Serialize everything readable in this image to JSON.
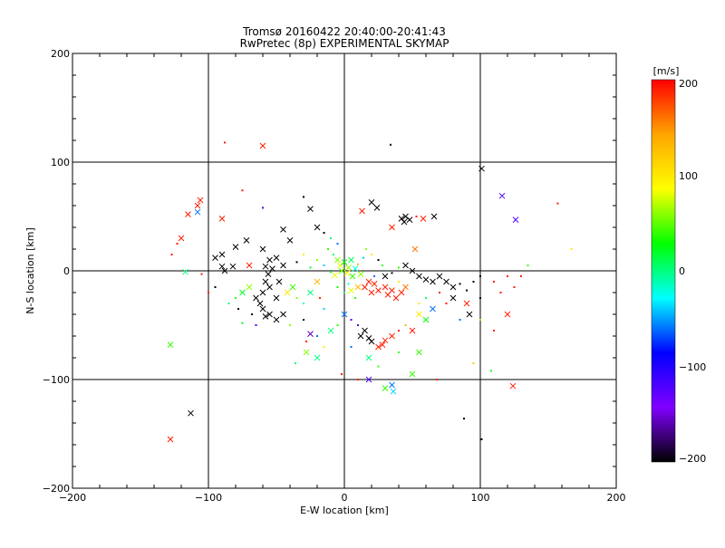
{
  "chart_data": {
    "type": "scatter",
    "title": "Tromsø 20160422 20:40:00-20:41:43",
    "subtitle": "RwPretec (8p) EXPERIMENTAL SKYMAP",
    "xlabel": "E-W location [km]",
    "ylabel": "N-S location [km]",
    "xlim": [
      -200,
      200
    ],
    "ylim": [
      -200,
      200
    ],
    "x_ticks": [
      -200,
      -100,
      0,
      100,
      200
    ],
    "y_ticks": [
      -200,
      -100,
      0,
      100,
      200
    ],
    "x_tick_labels": [
      "−200",
      "−100",
      "0",
      "100",
      "200"
    ],
    "y_tick_labels": [
      "−200",
      "−100",
      "0",
      "100",
      "200"
    ],
    "grid_lines": [
      -100,
      0,
      100
    ],
    "colorbar": {
      "label": "[m/s]",
      "range": [
        -200,
        200
      ],
      "ticks": [
        200,
        100,
        0,
        -100,
        -200
      ],
      "tick_labels": [
        "200",
        "100",
        "0",
        "−100",
        "−200"
      ],
      "colors": [
        "#ff0000",
        "#ffa500",
        "#ffff00",
        "#00ff00",
        "#00ffff",
        "#0000ff",
        "#8000ff",
        "#000000"
      ]
    },
    "points": [
      {
        "x": -88,
        "y": 118,
        "v": 190,
        "m": "."
      },
      {
        "x": -60,
        "y": 115,
        "v": 190,
        "m": "x"
      },
      {
        "x": 34,
        "y": 116,
        "v": -200,
        "m": "."
      },
      {
        "x": 101,
        "y": 94,
        "v": -200,
        "m": "x"
      },
      {
        "x": 116,
        "y": 69,
        "v": -120,
        "m": "x"
      },
      {
        "x": 126,
        "y": 47,
        "v": -120,
        "m": "x"
      },
      {
        "x": 157,
        "y": 62,
        "v": 190,
        "m": "."
      },
      {
        "x": 167,
        "y": 20,
        "v": 100,
        "m": "."
      },
      {
        "x": -106,
        "y": 65,
        "v": 190,
        "m": "x"
      },
      {
        "x": -108,
        "y": 60,
        "v": 190,
        "m": "x"
      },
      {
        "x": -115,
        "y": 52,
        "v": 190,
        "m": "x"
      },
      {
        "x": -108,
        "y": 54,
        "v": -60,
        "m": "x"
      },
      {
        "x": -120,
        "y": 30,
        "v": 190,
        "m": "x"
      },
      {
        "x": -123,
        "y": 25,
        "v": 190,
        "m": "."
      },
      {
        "x": -90,
        "y": 48,
        "v": 190,
        "m": "x"
      },
      {
        "x": -75,
        "y": 74,
        "v": 190,
        "m": "."
      },
      {
        "x": -60,
        "y": 58,
        "v": -120,
        "m": "."
      },
      {
        "x": -30,
        "y": 68,
        "v": -200,
        "m": "."
      },
      {
        "x": -25,
        "y": 57,
        "v": -200,
        "m": "x"
      },
      {
        "x": 20,
        "y": 63,
        "v": -200,
        "m": "x"
      },
      {
        "x": 24,
        "y": 58,
        "v": -200,
        "m": "x"
      },
      {
        "x": 13,
        "y": 55,
        "v": 190,
        "m": "x"
      },
      {
        "x": 42,
        "y": 48,
        "v": -200,
        "m": "x"
      },
      {
        "x": 45,
        "y": 50,
        "v": -200,
        "m": "x"
      },
      {
        "x": 44,
        "y": 45,
        "v": -200,
        "m": "x"
      },
      {
        "x": 48,
        "y": 47,
        "v": -200,
        "m": "x"
      },
      {
        "x": 58,
        "y": 48,
        "v": 190,
        "m": "x"
      },
      {
        "x": 53,
        "y": 50,
        "v": 190,
        "m": "."
      },
      {
        "x": 66,
        "y": 50,
        "v": -200,
        "m": "x"
      },
      {
        "x": 35,
        "y": 40,
        "v": 190,
        "m": "x"
      },
      {
        "x": 52,
        "y": 20,
        "v": 160,
        "m": "x"
      },
      {
        "x": -127,
        "y": 15,
        "v": 190,
        "m": "."
      },
      {
        "x": -105,
        "y": -3,
        "v": 190,
        "m": "."
      },
      {
        "x": -117,
        "y": -1,
        "v": 0,
        "m": "x"
      },
      {
        "x": -90,
        "y": 15,
        "v": -200,
        "m": "x"
      },
      {
        "x": -95,
        "y": 12,
        "v": -200,
        "m": "x"
      },
      {
        "x": -90,
        "y": 4,
        "v": -200,
        "m": "x"
      },
      {
        "x": -88,
        "y": 0,
        "v": -200,
        "m": "x"
      },
      {
        "x": -82,
        "y": 4,
        "v": -200,
        "m": "x"
      },
      {
        "x": -80,
        "y": 22,
        "v": -200,
        "m": "x"
      },
      {
        "x": -72,
        "y": 28,
        "v": -200,
        "m": "x"
      },
      {
        "x": -70,
        "y": 5,
        "v": 190,
        "m": "x"
      },
      {
        "x": -60,
        "y": 20,
        "v": -200,
        "m": "x"
      },
      {
        "x": -55,
        "y": 10,
        "v": -200,
        "m": "x"
      },
      {
        "x": -58,
        "y": 4,
        "v": -200,
        "m": "x"
      },
      {
        "x": -53,
        "y": 2,
        "v": -200,
        "m": "x"
      },
      {
        "x": -56,
        "y": -3,
        "v": -200,
        "m": "x"
      },
      {
        "x": -50,
        "y": 12,
        "v": -200,
        "m": "x"
      },
      {
        "x": -45,
        "y": 38,
        "v": -200,
        "m": "x"
      },
      {
        "x": -40,
        "y": 28,
        "v": -200,
        "m": "x"
      },
      {
        "x": -45,
        "y": 5,
        "v": -200,
        "m": "x"
      },
      {
        "x": -35,
        "y": 8,
        "v": -200,
        "m": "."
      },
      {
        "x": -30,
        "y": 15,
        "v": 100,
        "m": "."
      },
      {
        "x": -20,
        "y": 40,
        "v": -200,
        "m": "x"
      },
      {
        "x": -15,
        "y": 35,
        "v": -200,
        "m": "."
      },
      {
        "x": -10,
        "y": 30,
        "v": 0,
        "m": "."
      },
      {
        "x": -5,
        "y": 25,
        "v": -60,
        "m": "."
      },
      {
        "x": -12,
        "y": 20,
        "v": 40,
        "m": "."
      },
      {
        "x": -8,
        "y": 15,
        "v": 0,
        "m": "."
      },
      {
        "x": -20,
        "y": 10,
        "v": 60,
        "m": "."
      },
      {
        "x": -15,
        "y": 5,
        "v": -40,
        "m": "."
      },
      {
        "x": -25,
        "y": 3,
        "v": 20,
        "m": "."
      },
      {
        "x": -5,
        "y": 10,
        "v": 60,
        "m": "x"
      },
      {
        "x": -3,
        "y": 5,
        "v": 80,
        "m": "x"
      },
      {
        "x": 0,
        "y": 8,
        "v": 30,
        "m": "x"
      },
      {
        "x": 3,
        "y": 3,
        "v": 60,
        "m": "x"
      },
      {
        "x": 5,
        "y": 10,
        "v": 10,
        "m": "x"
      },
      {
        "x": -2,
        "y": 0,
        "v": 50,
        "m": "x"
      },
      {
        "x": 2,
        "y": -2,
        "v": 90,
        "m": "x"
      },
      {
        "x": 6,
        "y": -5,
        "v": 40,
        "m": "x"
      },
      {
        "x": 8,
        "y": 2,
        "v": -20,
        "m": "x"
      },
      {
        "x": 10,
        "y": 6,
        "v": 120,
        "m": "."
      },
      {
        "x": -7,
        "y": -4,
        "v": 80,
        "m": "x"
      },
      {
        "x": -10,
        "y": -1,
        "v": 20,
        "m": "."
      },
      {
        "x": 12,
        "y": -3,
        "v": 60,
        "m": "x"
      },
      {
        "x": 14,
        "y": 12,
        "v": -40,
        "m": "."
      },
      {
        "x": 16,
        "y": 20,
        "v": 60,
        "m": "."
      },
      {
        "x": 20,
        "y": 15,
        "v": 100,
        "m": "."
      },
      {
        "x": 25,
        "y": 10,
        "v": -200,
        "m": "."
      },
      {
        "x": 28,
        "y": 5,
        "v": 40,
        "m": "."
      },
      {
        "x": 22,
        "y": -5,
        "v": -60,
        "m": "."
      },
      {
        "x": 18,
        "y": -10,
        "v": 190,
        "m": "x"
      },
      {
        "x": 22,
        "y": -12,
        "v": 190,
        "m": "x"
      },
      {
        "x": 15,
        "y": -15,
        "v": 190,
        "m": "x"
      },
      {
        "x": 25,
        "y": -18,
        "v": 190,
        "m": "x"
      },
      {
        "x": 20,
        "y": -20,
        "v": 190,
        "m": "x"
      },
      {
        "x": 10,
        "y": -15,
        "v": 130,
        "m": "x"
      },
      {
        "x": 5,
        "y": -18,
        "v": 80,
        "m": "x"
      },
      {
        "x": 8,
        "y": -25,
        "v": 40,
        "m": "."
      },
      {
        "x": 0,
        "y": -20,
        "v": 0,
        "m": "."
      },
      {
        "x": -5,
        "y": -15,
        "v": 30,
        "m": "."
      },
      {
        "x": 3,
        "y": -12,
        "v": -20,
        "m": "."
      },
      {
        "x": 30,
        "y": -15,
        "v": 190,
        "m": "x"
      },
      {
        "x": 32,
        "y": -22,
        "v": 190,
        "m": "x"
      },
      {
        "x": 35,
        "y": -18,
        "v": 190,
        "m": "x"
      },
      {
        "x": 38,
        "y": -25,
        "v": 190,
        "m": "x"
      },
      {
        "x": 40,
        "y": -10,
        "v": 100,
        "m": "."
      },
      {
        "x": 42,
        "y": -20,
        "v": 190,
        "m": "x"
      },
      {
        "x": 45,
        "y": -15,
        "v": 160,
        "m": "x"
      },
      {
        "x": 30,
        "y": -5,
        "v": -200,
        "m": "x"
      },
      {
        "x": 35,
        "y": -2,
        "v": -200,
        "m": "."
      },
      {
        "x": 40,
        "y": 3,
        "v": 40,
        "m": "."
      },
      {
        "x": 45,
        "y": 5,
        "v": -200,
        "m": "x"
      },
      {
        "x": 50,
        "y": 0,
        "v": -200,
        "m": "x"
      },
      {
        "x": 55,
        "y": -5,
        "v": -200,
        "m": "x"
      },
      {
        "x": 60,
        "y": -8,
        "v": -200,
        "m": "x"
      },
      {
        "x": 65,
        "y": -10,
        "v": -200,
        "m": "x"
      },
      {
        "x": 70,
        "y": -5,
        "v": -200,
        "m": "x"
      },
      {
        "x": 75,
        "y": -10,
        "v": -200,
        "m": "x"
      },
      {
        "x": 80,
        "y": -15,
        "v": -200,
        "m": "x"
      },
      {
        "x": 85,
        "y": -12,
        "v": -200,
        "m": "."
      },
      {
        "x": 90,
        "y": -18,
        "v": -200,
        "m": "."
      },
      {
        "x": 95,
        "y": -10,
        "v": -200,
        "m": "."
      },
      {
        "x": 100,
        "y": -5,
        "v": -200,
        "m": "."
      },
      {
        "x": 80,
        "y": -25,
        "v": -200,
        "m": "x"
      },
      {
        "x": 70,
        "y": -20,
        "v": 190,
        "m": "."
      },
      {
        "x": 60,
        "y": -25,
        "v": 0,
        "m": "."
      },
      {
        "x": 55,
        "y": -30,
        "v": 100,
        "m": "."
      },
      {
        "x": 65,
        "y": -35,
        "v": -60,
        "m": "x"
      },
      {
        "x": 75,
        "y": -30,
        "v": 190,
        "m": "."
      },
      {
        "x": 90,
        "y": -30,
        "v": 190,
        "m": "x"
      },
      {
        "x": 92,
        "y": -40,
        "v": -200,
        "m": "x"
      },
      {
        "x": 100,
        "y": -25,
        "v": -200,
        "m": "."
      },
      {
        "x": 110,
        "y": -10,
        "v": 190,
        "m": "."
      },
      {
        "x": 115,
        "y": -20,
        "v": 190,
        "m": "."
      },
      {
        "x": 120,
        "y": -5,
        "v": 190,
        "m": "."
      },
      {
        "x": 125,
        "y": -15,
        "v": 190,
        "m": "."
      },
      {
        "x": 130,
        "y": -5,
        "v": 190,
        "m": "."
      },
      {
        "x": 135,
        "y": 5,
        "v": 40,
        "m": "."
      },
      {
        "x": 120,
        "y": -40,
        "v": 190,
        "m": "x"
      },
      {
        "x": 110,
        "y": -55,
        "v": 190,
        "m": "."
      },
      {
        "x": 100,
        "y": -45,
        "v": 60,
        "m": "."
      },
      {
        "x": 85,
        "y": -45,
        "v": -60,
        "m": "."
      },
      {
        "x": 95,
        "y": -85,
        "v": 120,
        "m": "."
      },
      {
        "x": 108,
        "y": -92,
        "v": 20,
        "m": "."
      },
      {
        "x": 124,
        "y": -106,
        "v": 190,
        "m": "x"
      },
      {
        "x": 15,
        "y": -55,
        "v": -200,
        "m": "x"
      },
      {
        "x": 12,
        "y": -60,
        "v": -200,
        "m": "x"
      },
      {
        "x": 18,
        "y": -62,
        "v": -200,
        "m": "x"
      },
      {
        "x": 20,
        "y": -65,
        "v": -200,
        "m": "x"
      },
      {
        "x": 28,
        "y": -68,
        "v": 190,
        "m": "x"
      },
      {
        "x": 30,
        "y": -64,
        "v": 190,
        "m": "x"
      },
      {
        "x": 25,
        "y": -70,
        "v": 190,
        "m": "x"
      },
      {
        "x": 35,
        "y": -60,
        "v": 190,
        "m": "x"
      },
      {
        "x": 40,
        "y": -55,
        "v": 190,
        "m": "."
      },
      {
        "x": 45,
        "y": -50,
        "v": 130,
        "m": "."
      },
      {
        "x": 50,
        "y": -55,
        "v": 190,
        "m": "x"
      },
      {
        "x": 55,
        "y": -40,
        "v": 100,
        "m": "x"
      },
      {
        "x": 60,
        "y": -45,
        "v": 30,
        "m": "x"
      },
      {
        "x": 5,
        "y": -45,
        "v": -120,
        "m": "."
      },
      {
        "x": 0,
        "y": -40,
        "v": -60,
        "m": "x"
      },
      {
        "x": -5,
        "y": -50,
        "v": 40,
        "m": "."
      },
      {
        "x": -10,
        "y": -55,
        "v": 0,
        "m": "x"
      },
      {
        "x": 10,
        "y": -50,
        "v": -160,
        "m": "."
      },
      {
        "x": -20,
        "y": -60,
        "v": -60,
        "m": "."
      },
      {
        "x": -25,
        "y": -58,
        "v": -160,
        "m": "x"
      },
      {
        "x": -28,
        "y": -65,
        "v": 190,
        "m": "."
      },
      {
        "x": -30,
        "y": -45,
        "v": -200,
        "m": "."
      },
      {
        "x": -40,
        "y": -50,
        "v": 60,
        "m": "."
      },
      {
        "x": -45,
        "y": -40,
        "v": -200,
        "m": "x"
      },
      {
        "x": -50,
        "y": -45,
        "v": -200,
        "m": "x"
      },
      {
        "x": -55,
        "y": -40,
        "v": -200,
        "m": "x"
      },
      {
        "x": -58,
        "y": -42,
        "v": -200,
        "m": "x"
      },
      {
        "x": -60,
        "y": -35,
        "v": -200,
        "m": "x"
      },
      {
        "x": -62,
        "y": -30,
        "v": -200,
        "m": "x"
      },
      {
        "x": -65,
        "y": -25,
        "v": -200,
        "m": "x"
      },
      {
        "x": -60,
        "y": -20,
        "v": -200,
        "m": "x"
      },
      {
        "x": -55,
        "y": -15,
        "v": -200,
        "m": "x"
      },
      {
        "x": -50,
        "y": -25,
        "v": -200,
        "m": "x"
      },
      {
        "x": -58,
        "y": -10,
        "v": -200,
        "m": "x"
      },
      {
        "x": -48,
        "y": -10,
        "v": -200,
        "m": "x"
      },
      {
        "x": -42,
        "y": -20,
        "v": 100,
        "m": "x"
      },
      {
        "x": -38,
        "y": -15,
        "v": 40,
        "m": "x"
      },
      {
        "x": -35,
        "y": -25,
        "v": 60,
        "m": "."
      },
      {
        "x": -30,
        "y": -30,
        "v": -20,
        "m": "."
      },
      {
        "x": -25,
        "y": -20,
        "v": 0,
        "m": "x"
      },
      {
        "x": -20,
        "y": -10,
        "v": 130,
        "m": "x"
      },
      {
        "x": -18,
        "y": -25,
        "v": 190,
        "m": "."
      },
      {
        "x": -15,
        "y": -35,
        "v": -40,
        "m": "."
      },
      {
        "x": -70,
        "y": -15,
        "v": 60,
        "m": "x"
      },
      {
        "x": -75,
        "y": -20,
        "v": 20,
        "m": "x"
      },
      {
        "x": -80,
        "y": -25,
        "v": 40,
        "m": "."
      },
      {
        "x": -85,
        "y": -30,
        "v": 0,
        "m": "."
      },
      {
        "x": -78,
        "y": -35,
        "v": -200,
        "m": "."
      },
      {
        "x": -68,
        "y": -40,
        "v": -200,
        "m": "."
      },
      {
        "x": -65,
        "y": -50,
        "v": -120,
        "m": "."
      },
      {
        "x": -75,
        "y": -48,
        "v": 20,
        "m": "."
      },
      {
        "x": -95,
        "y": -15,
        "v": -200,
        "m": "."
      },
      {
        "x": -100,
        "y": -20,
        "v": 190,
        "m": "."
      },
      {
        "x": -36,
        "y": -85,
        "v": 0,
        "m": "."
      },
      {
        "x": -28,
        "y": -75,
        "v": 60,
        "m": "x"
      },
      {
        "x": -20,
        "y": -80,
        "v": 0,
        "m": "x"
      },
      {
        "x": -15,
        "y": -70,
        "v": 100,
        "m": "."
      },
      {
        "x": 5,
        "y": -70,
        "v": -60,
        "m": "."
      },
      {
        "x": 18,
        "y": -80,
        "v": 0,
        "m": "x"
      },
      {
        "x": 25,
        "y": -88,
        "v": 40,
        "m": "."
      },
      {
        "x": 40,
        "y": -75,
        "v": 40,
        "m": "."
      },
      {
        "x": 55,
        "y": -75,
        "v": 40,
        "m": "x"
      },
      {
        "x": 50,
        "y": -95,
        "v": 40,
        "m": "x"
      },
      {
        "x": 35,
        "y": -105,
        "v": -60,
        "m": "x"
      },
      {
        "x": 30,
        "y": -108,
        "v": 40,
        "m": "x"
      },
      {
        "x": 36,
        "y": -111,
        "v": -40,
        "m": "x"
      },
      {
        "x": 18,
        "y": -100,
        "v": -120,
        "m": "x"
      },
      {
        "x": 10,
        "y": -100,
        "v": 190,
        "m": "."
      },
      {
        "x": -2,
        "y": -95,
        "v": 190,
        "m": "."
      },
      {
        "x": 68,
        "y": -100,
        "v": 190,
        "m": "."
      },
      {
        "x": 88,
        "y": -136,
        "v": -200,
        "m": "."
      },
      {
        "x": 101,
        "y": -155,
        "v": -200,
        "m": "."
      },
      {
        "x": -128,
        "y": -68,
        "v": 40,
        "m": "x"
      },
      {
        "x": -113,
        "y": -131,
        "v": -200,
        "m": "x"
      },
      {
        "x": -128,
        "y": -155,
        "v": 190,
        "m": "x"
      }
    ]
  }
}
